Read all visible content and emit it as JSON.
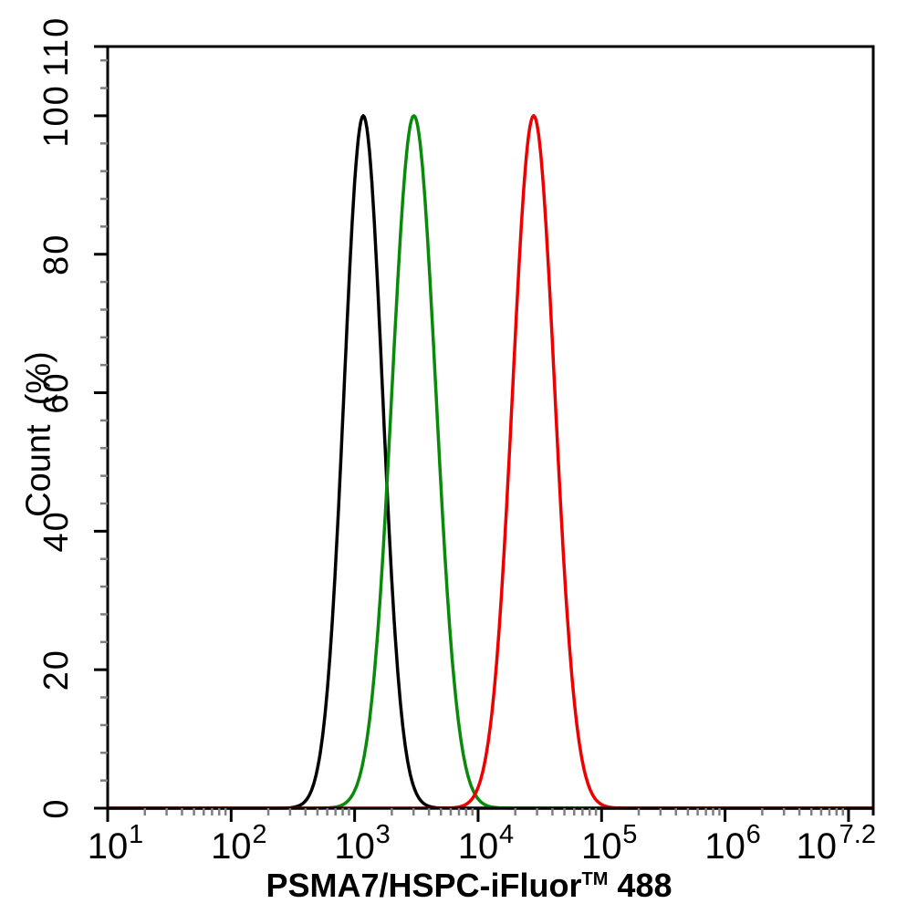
{
  "figure": {
    "background": "#ffffff"
  },
  "chart_data": {
    "type": "line",
    "subtype": "flow_cytometry_histogram",
    "title": "",
    "xlabel": {
      "prefix": "PSMA7/HSPC-iFluor",
      "trademark": "TM",
      "suffix": " 488",
      "full_text": "PSMA7/HSPC-iFluor™ 488"
    },
    "ylabel": "Count  (%)",
    "x_axis": {
      "scale": "log10",
      "log10_min": 1.0,
      "log10_max": 7.2,
      "tick_base": "10",
      "major_ticks": [
        {
          "log10": 1,
          "exp": "1"
        },
        {
          "log10": 2,
          "exp": "2"
        },
        {
          "log10": 3,
          "exp": "3"
        },
        {
          "log10": 4,
          "exp": "4"
        },
        {
          "log10": 5,
          "exp": "5"
        },
        {
          "log10": 6,
          "exp": "6"
        },
        {
          "log10": 7,
          "exp": null
        },
        {
          "log10": 7.2,
          "exp": "7.2",
          "tick": false,
          "align": "edge"
        }
      ],
      "minor_ticks_per_decade": [
        2,
        3,
        4,
        5,
        6,
        7,
        8,
        9
      ],
      "major_tick_color": "#000000",
      "minor_tick_color": "#7f7f7f"
    },
    "y_axis": {
      "min": 0,
      "max": 110,
      "major_ticks": [
        0,
        20,
        40,
        60,
        80,
        100,
        110
      ],
      "minor_tick_step": 4,
      "major_tick_color": "#000000",
      "minor_tick_color": "#7f7f7f"
    },
    "grid": false,
    "legend": false,
    "series": [
      {
        "name": "black-curve",
        "color": "#000000",
        "shape": "gaussian_in_log10_x",
        "peak_x": 1200,
        "peak_log10": 3.07,
        "sigma_log10": 0.155,
        "peak_y_percent": 100
      },
      {
        "name": "green-curve",
        "color": "#0a8a0a",
        "shape": "gaussian_in_log10_x",
        "peak_x": 3000,
        "peak_log10": 3.48,
        "sigma_log10": 0.177,
        "peak_y_percent": 100
      },
      {
        "name": "red-curve",
        "color": "#ee0000",
        "shape": "gaussian_in_log10_x",
        "peak_x": 28000,
        "peak_log10": 4.45,
        "sigma_log10": 0.17,
        "peak_y_percent": 100
      }
    ]
  }
}
